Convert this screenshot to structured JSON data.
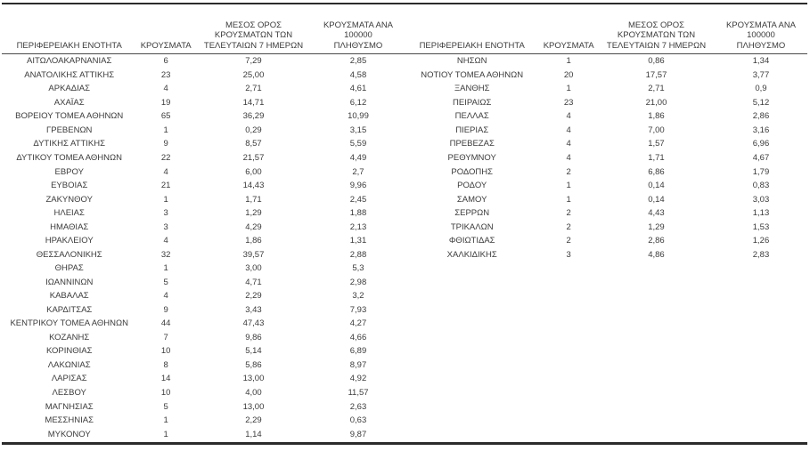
{
  "page": {
    "background": "#ffffff",
    "text_color": "#3b3b3b",
    "rule_color": "#2b2b2b"
  },
  "columns": {
    "region": "ΠΕΡΙΦΕΡΕΙΑΚΗ ΕΝΟΤΗΤΑ",
    "cases": "ΚΡΟΥΣΜΑΤΑ",
    "avg7d": "ΜΕΣΟΣ ΟΡΟΣ\nΚΡΟΥΣΜΑΤΩΝ ΤΩΝ\nΤΕΛΕΥΤΑΙΩΝ 7 ΗΜΕΡΩΝ",
    "per100k": "ΚΡΟΥΣΜΑΤΑ ΑΝΑ 100000\nΠΛΗΘΥΣΜΟ"
  },
  "tables": [
    {
      "name": "left",
      "rows": [
        [
          "ΑΙΤΩΛΟΑΚΑΡΝΑΝΙΑΣ",
          "6",
          "7,29",
          "2,85"
        ],
        [
          "ΑΝΑΤΟΛΙΚΗΣ ΑΤΤΙΚΗΣ",
          "23",
          "25,00",
          "4,58"
        ],
        [
          "ΑΡΚΑΔΙΑΣ",
          "4",
          "2,71",
          "4,61"
        ],
        [
          "ΑΧΑΪΑΣ",
          "19",
          "14,71",
          "6,12"
        ],
        [
          "ΒΟΡΕΙΟΥ ΤΟΜΕΑ ΑΘΗΝΩΝ",
          "65",
          "36,29",
          "10,99"
        ],
        [
          "ΓΡΕΒΕΝΩΝ",
          "1",
          "0,29",
          "3,15"
        ],
        [
          "ΔΥΤΙΚΗΣ ΑΤΤΙΚΗΣ",
          "9",
          "8,57",
          "5,59"
        ],
        [
          "ΔΥΤΙΚΟΥ ΤΟΜΕΑ ΑΘΗΝΩΝ",
          "22",
          "21,57",
          "4,49"
        ],
        [
          "ΕΒΡΟΥ",
          "4",
          "6,00",
          "2,7"
        ],
        [
          "ΕΥΒΟΙΑΣ",
          "21",
          "14,43",
          "9,96"
        ],
        [
          "ΖΑΚΥΝΘΟΥ",
          "1",
          "1,71",
          "2,45"
        ],
        [
          "ΗΛΕΙΑΣ",
          "3",
          "1,29",
          "1,88"
        ],
        [
          "ΗΜΑΘΙΑΣ",
          "3",
          "4,29",
          "2,13"
        ],
        [
          "ΗΡΑΚΛΕΙΟΥ",
          "4",
          "1,86",
          "1,31"
        ],
        [
          "ΘΕΣΣΑΛΟΝΙΚΗΣ",
          "32",
          "39,57",
          "2,88"
        ],
        [
          "ΘΗΡΑΣ",
          "1",
          "3,00",
          "5,3"
        ],
        [
          "ΙΩΑΝΝΙΝΩΝ",
          "5",
          "4,71",
          "2,98"
        ],
        [
          "ΚΑΒΑΛΑΣ",
          "4",
          "2,29",
          "3,2"
        ],
        [
          "ΚΑΡΔΙΤΣΑΣ",
          "9",
          "3,43",
          "7,93"
        ],
        [
          "ΚΕΝΤΡΙΚΟΥ ΤΟΜΕΑ ΑΘΗΝΩΝ",
          "44",
          "47,43",
          "4,27"
        ],
        [
          "ΚΟΖΑΝΗΣ",
          "7",
          "9,86",
          "4,66"
        ],
        [
          "ΚΟΡΙΝΘΙΑΣ",
          "10",
          "5,14",
          "6,89"
        ],
        [
          "ΛΑΚΩΝΙΑΣ",
          "8",
          "5,86",
          "8,97"
        ],
        [
          "ΛΑΡΙΣΑΣ",
          "14",
          "13,00",
          "4,92"
        ],
        [
          "ΛΕΣΒΟΥ",
          "10",
          "4,00",
          "11,57"
        ],
        [
          "ΜΑΓΝΗΣΙΑΣ",
          "5",
          "13,00",
          "2,63"
        ],
        [
          "ΜΕΣΣΗΝΙΑΣ",
          "1",
          "2,29",
          "0,63"
        ],
        [
          "ΜΥΚΟΝΟΥ",
          "1",
          "1,14",
          "9,87"
        ]
      ]
    },
    {
      "name": "right",
      "rows": [
        [
          "ΝΗΣΩΝ",
          "1",
          "0,86",
          "1,34"
        ],
        [
          "ΝΟΤΙΟΥ ΤΟΜΕΑ ΑΘΗΝΩΝ",
          "20",
          "17,57",
          "3,77"
        ],
        [
          "ΞΑΝΘΗΣ",
          "1",
          "2,71",
          "0,9"
        ],
        [
          "ΠΕΙΡΑΙΩΣ",
          "23",
          "21,00",
          "5,12"
        ],
        [
          "ΠΕΛΛΑΣ",
          "4",
          "1,86",
          "2,86"
        ],
        [
          "ΠΙΕΡΙΑΣ",
          "4",
          "7,00",
          "3,16"
        ],
        [
          "ΠΡΕΒΕΖΑΣ",
          "4",
          "1,57",
          "6,96"
        ],
        [
          "ΡΕΘΥΜΝΟΥ",
          "4",
          "1,71",
          "4,67"
        ],
        [
          "ΡΟΔΟΠΗΣ",
          "2",
          "6,86",
          "1,79"
        ],
        [
          "ΡΟΔΟΥ",
          "1",
          "0,14",
          "0,83"
        ],
        [
          "ΣΑΜΟΥ",
          "1",
          "0,14",
          "3,03"
        ],
        [
          "ΣΕΡΡΩΝ",
          "2",
          "4,43",
          "1,13"
        ],
        [
          "ΤΡΙΚΑΛΩΝ",
          "2",
          "1,29",
          "1,53"
        ],
        [
          "ΦΘΙΩΤΙΔΑΣ",
          "2",
          "2,86",
          "1,26"
        ],
        [
          "ΧΑΛΚΙΔΙΚΗΣ",
          "3",
          "4,86",
          "2,83"
        ]
      ]
    }
  ]
}
